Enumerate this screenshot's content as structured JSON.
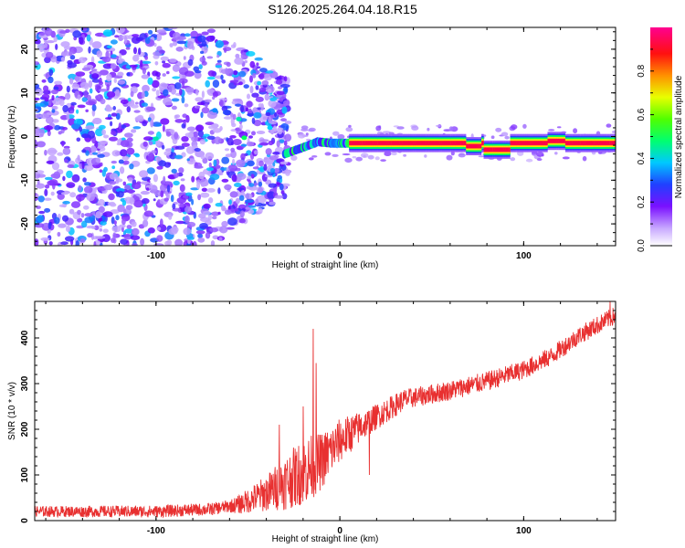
{
  "title": "S126.2025.264.04.18.R15",
  "colors": {
    "signal": "#e83030",
    "axis": "#000000",
    "background": "#ffffff"
  },
  "chart_data": [
    {
      "type": "heatmap",
      "xlabel": "Height of straight line (km)",
      "ylabel": "Frequency (Hz)",
      "xlim": [
        -166,
        150
      ],
      "ylim": [
        -25,
        25
      ],
      "xticks": [
        -100,
        0,
        100
      ],
      "yticks": [
        -20,
        -10,
        0,
        10,
        20
      ],
      "xtick_labels": [
        "-100",
        "0",
        "100"
      ],
      "ytick_labels": [
        "-20",
        "-10",
        "0",
        "10",
        "20"
      ],
      "colorbar": {
        "label": "Normalized spectral amplitude",
        "range": [
          0,
          1
        ],
        "ticks": [
          0.0,
          0.2,
          0.4,
          0.6,
          0.8
        ],
        "tick_labels": [
          "0.0",
          "0.2",
          "0.4",
          "0.6",
          "0.8"
        ],
        "colormap": [
          "#ffffff",
          "#a070ff",
          "#6a00ff",
          "#2040ff",
          "#00d0ff",
          "#00ff60",
          "#60ff00",
          "#ffff00",
          "#ff8000",
          "#ff0000",
          "#ff0090"
        ]
      },
      "features": {
        "noise_region_x": [
          -166,
          -28
        ],
        "noise_amplitude": 0.35,
        "band_ramp": {
          "x": [
            -30,
            -20,
            -12,
            -5,
            0,
            5
          ],
          "freq": [
            -4,
            -2.5,
            -1.2,
            -1.5,
            -1.5,
            -1.5
          ]
        },
        "carrier_band": {
          "x": [
            5,
            150
          ],
          "freq": -1.5,
          "halfwidth_hz": 1.3,
          "peak_amplitude": 0.95
        },
        "band_dips": [
          {
            "x": [
              68,
              76
            ],
            "freq": -2.2
          },
          {
            "x": [
              78,
              92
            ],
            "freq": -3.0
          },
          {
            "x": [
              112,
              122
            ],
            "freq": -1.0
          }
        ],
        "scattered_spots": [
          {
            "x": -100,
            "freq": -0.5,
            "amp": 0.45
          },
          {
            "x": -52,
            "freq": -0.3,
            "amp": 0.5
          },
          {
            "x": -55,
            "freq": 4,
            "amp": 0.45
          },
          {
            "x": -38,
            "freq": 2,
            "amp": 0.4
          },
          {
            "x": -68,
            "freq": 6,
            "amp": 0.35
          }
        ]
      }
    },
    {
      "type": "line",
      "xlabel": "Height of straight line (km)",
      "ylabel": "SNR (10 * v/v)",
      "xlim": [
        -166,
        150
      ],
      "ylim": [
        0,
        480
      ],
      "xticks": [
        -100,
        0,
        100
      ],
      "yticks": [
        0,
        100,
        200,
        300,
        400
      ],
      "xtick_labels": [
        "-100",
        "0",
        "100"
      ],
      "ytick_labels": [
        "0",
        "100",
        "200",
        "300",
        "400"
      ],
      "series": [
        {
          "name": "SNR",
          "trend": {
            "x": [
              -166,
              -100,
              -70,
              -55,
              -40,
              -25,
              -10,
              0,
              15,
              35,
              60,
              80,
              100,
              115,
              130,
              150
            ],
            "y": [
              20,
              20,
              25,
              35,
              60,
              95,
              130,
              175,
              215,
              265,
              285,
              305,
              330,
              360,
              405,
              450
            ]
          },
          "noise": {
            "x": [
              -166,
              -60,
              -40,
              -30,
              -18,
              -5,
              15,
              40,
              150
            ],
            "amplitude": [
              12,
              14,
              40,
              60,
              75,
              55,
              30,
              22,
              20
            ]
          },
          "spikes": [
            {
              "x": -14.5,
              "y": 420
            },
            {
              "x": -13,
              "y": 345
            },
            {
              "x": -20,
              "y": 250
            },
            {
              "x": -33,
              "y": 210
            },
            {
              "x": 16,
              "y": 100
            },
            {
              "x": 147,
              "y": 480
            }
          ]
        }
      ]
    }
  ]
}
